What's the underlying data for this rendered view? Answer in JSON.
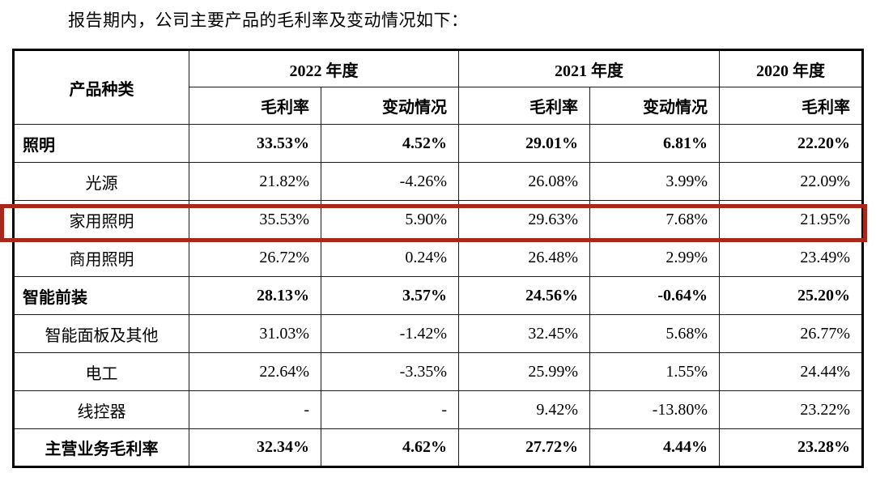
{
  "page": {
    "title": "报告期内，公司主要产品的毛利率及变动情况如下："
  },
  "table": {
    "header": {
      "product_col": "产品种类",
      "year_groups": [
        {
          "label": "2022 年度",
          "subs": [
            "毛利率",
            "变动情况"
          ]
        },
        {
          "label": "2021 年度",
          "subs": [
            "毛利率",
            "变动情况"
          ]
        },
        {
          "label": "2020 年度",
          "subs": [
            "毛利率"
          ]
        }
      ]
    },
    "rows": [
      {
        "label": "照明",
        "style": "category",
        "highlighted": false,
        "values": [
          "33.53%",
          "4.52%",
          "29.01%",
          "6.81%",
          "22.20%"
        ]
      },
      {
        "label": "光源",
        "style": "sub",
        "highlighted": false,
        "values": [
          "21.82%",
          "-4.26%",
          "26.08%",
          "3.99%",
          "22.09%"
        ]
      },
      {
        "label": "家用照明",
        "style": "sub",
        "highlighted": true,
        "values": [
          "35.53%",
          "5.90%",
          "29.63%",
          "7.68%",
          "21.95%"
        ]
      },
      {
        "label": "商用照明",
        "style": "sub",
        "highlighted": false,
        "values": [
          "26.72%",
          "0.24%",
          "26.48%",
          "2.99%",
          "23.49%"
        ]
      },
      {
        "label": "智能前装",
        "style": "category",
        "highlighted": false,
        "values": [
          "28.13%",
          "3.57%",
          "24.56%",
          "-0.64%",
          "25.20%"
        ]
      },
      {
        "label": "智能面板及其他",
        "style": "sub",
        "highlighted": false,
        "values": [
          "31.03%",
          "-1.42%",
          "32.45%",
          "5.68%",
          "26.77%"
        ]
      },
      {
        "label": "电工",
        "style": "sub",
        "highlighted": false,
        "values": [
          "22.64%",
          "-3.35%",
          "25.99%",
          "1.55%",
          "24.44%"
        ]
      },
      {
        "label": "线控器",
        "style": "sub",
        "highlighted": false,
        "values": [
          "-",
          "-",
          "9.42%",
          "-13.80%",
          "23.22%"
        ]
      },
      {
        "label": "主营业务毛利率",
        "style": "total",
        "highlighted": false,
        "values": [
          "32.34%",
          "4.62%",
          "27.72%",
          "4.44%",
          "23.28%"
        ]
      }
    ]
  },
  "annotation": {
    "highlight_color": "#a8291b"
  }
}
